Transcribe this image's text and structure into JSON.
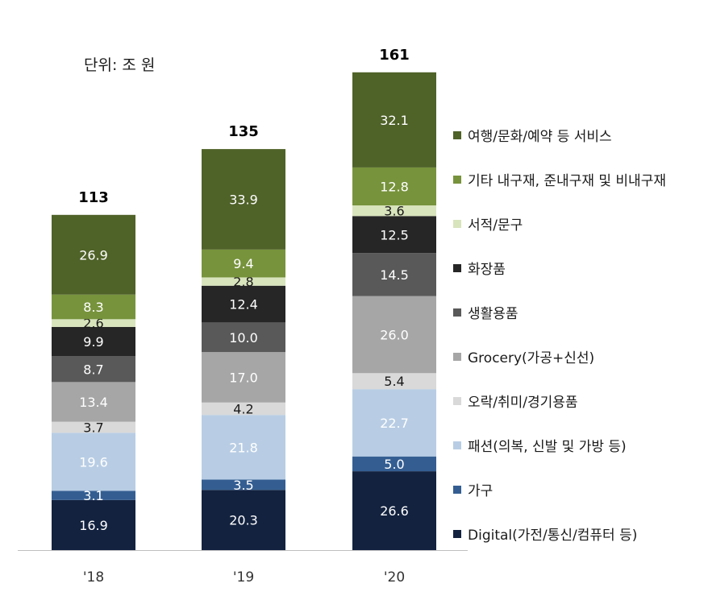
{
  "unit_label": "단위: 조 원",
  "chart_data": {
    "type": "bar",
    "stacked": true,
    "categories": [
      "'18",
      "'19",
      "'20"
    ],
    "totals": [
      "113",
      "135",
      "161"
    ],
    "series": [
      {
        "name": "Digital(가전/통신/컴퓨터 등)",
        "color": "#13223f",
        "label_color": "#ffffff",
        "values": [
          16.9,
          20.3,
          26.6
        ]
      },
      {
        "name": "가구",
        "color": "#345e92",
        "label_color": "#ffffff",
        "values": [
          3.1,
          3.5,
          5.0
        ]
      },
      {
        "name": "패션(의복, 신발 및 가방 등)",
        "color": "#b8cde4",
        "label_color": "#ffffff",
        "values": [
          19.6,
          21.8,
          22.7
        ]
      },
      {
        "name": "오락/취미/경기용품",
        "color": "#d9d9d9",
        "label_color": "#1a1a1a",
        "values": [
          3.7,
          4.2,
          5.4
        ]
      },
      {
        "name": "Grocery(가공+신선)",
        "color": "#a6a6a6",
        "label_color": "#ffffff",
        "values": [
          13.4,
          17.0,
          26.0
        ]
      },
      {
        "name": "생활용품",
        "color": "#595959",
        "label_color": "#ffffff",
        "values": [
          8.7,
          10.0,
          14.5
        ]
      },
      {
        "name": "화장품",
        "color": "#262626",
        "label_color": "#ffffff",
        "values": [
          9.9,
          12.4,
          12.5
        ]
      },
      {
        "name": "서적/문구",
        "color": "#d8e4bc",
        "label_color": "#1a1a1a",
        "values": [
          2.6,
          2.8,
          3.6
        ]
      },
      {
        "name": "기타 내구재, 준내구재 및 비내구재",
        "color": "#77933c",
        "label_color": "#ffffff",
        "values": [
          8.3,
          9.4,
          12.8
        ]
      },
      {
        "name": "여행/문화/예약 등 서비스",
        "color": "#4f6228",
        "label_color": "#ffffff",
        "values": [
          26.9,
          33.9,
          32.1
        ]
      }
    ],
    "legend_position": "right",
    "grid": false
  }
}
